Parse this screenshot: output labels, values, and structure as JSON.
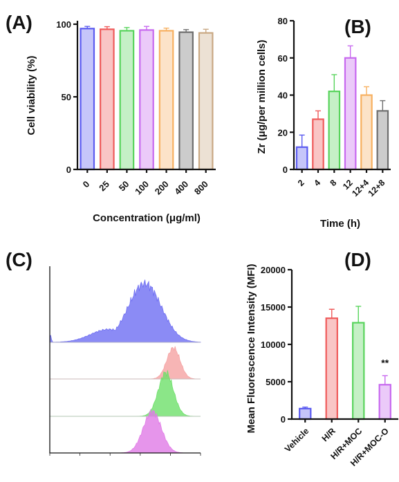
{
  "panels": {
    "A": "(A)",
    "B": "(B)",
    "C": "(C)",
    "D": "(D)"
  },
  "chart_data": [
    {
      "id": "A",
      "type": "bar",
      "xlabel": "Concentration (μg/ml)",
      "ylabel": "Cell viability (%)",
      "categories": [
        "0",
        "25",
        "50",
        "100",
        "200",
        "400",
        "800"
      ],
      "values": [
        97,
        96.5,
        95.5,
        96,
        95.5,
        94.5,
        94
      ],
      "errors": [
        1.5,
        1.8,
        2.2,
        2.5,
        1.8,
        1.8,
        2.5
      ],
      "ylim": [
        0,
        100
      ],
      "yticks": [
        "0",
        "50",
        "100"
      ],
      "colors": [
        "#5b5bf0",
        "#ef5a5a",
        "#58d45c",
        "#c768ef",
        "#f7b060",
        "#6e6e6e",
        "#c9a883"
      ],
      "legend": "none",
      "grid": false
    },
    {
      "id": "B",
      "type": "bar",
      "xlabel": "Time (h)",
      "ylabel": "Zr (μg/per million cells)",
      "categories": [
        "2",
        "4",
        "8",
        "12",
        "12+4",
        "12+8"
      ],
      "values": [
        12,
        27,
        42,
        60,
        40,
        31.5
      ],
      "errors": [
        6.5,
        4.5,
        9,
        6.5,
        4.5,
        5.5
      ],
      "ylim": [
        0,
        80
      ],
      "yticks": [
        "0",
        "20",
        "40",
        "60",
        "80"
      ],
      "colors": [
        "#5b5bf0",
        "#ef5a5a",
        "#58d45c",
        "#c768ef",
        "#f7b060",
        "#6e6e6e"
      ],
      "legend": "none",
      "grid": false
    },
    {
      "id": "C",
      "type": "area",
      "xlabel": "",
      "ylabel": "",
      "x_scale": "log",
      "xlim": [
        1,
        100000
      ],
      "series": [
        {
          "color": "#6e6ef2",
          "peak_log10": 3.15,
          "spread": 0.55,
          "left_tail": true
        },
        {
          "color": "#f5a3a3",
          "peak_log10": 4.1,
          "spread": 0.22
        },
        {
          "color": "#6ee06a",
          "peak_log10": 3.85,
          "spread": 0.25
        },
        {
          "color": "#e07ae6",
          "peak_log10": 3.4,
          "spread": 0.3
        }
      ],
      "legend": "none",
      "grid": false
    },
    {
      "id": "D",
      "type": "bar",
      "xlabel": "",
      "ylabel": "Mean Fluorescence Intensity (MFI)",
      "categories": [
        "Vehicle",
        "H/R",
        "H/R+MOC",
        "H/R+MOC-O"
      ],
      "values": [
        1400,
        13500,
        12900,
        4600
      ],
      "errors": [
        200,
        1200,
        2200,
        1200
      ],
      "ylim": [
        0,
        20000
      ],
      "yticks": [
        "0",
        "5000",
        "10000",
        "15000",
        "20000"
      ],
      "colors": [
        "#5b5bf0",
        "#ef5a5a",
        "#58d45c",
        "#c768ef"
      ],
      "annotations": [
        {
          "category": "H/R+MOC-O",
          "text": "**"
        }
      ],
      "legend": "none",
      "grid": false
    }
  ]
}
